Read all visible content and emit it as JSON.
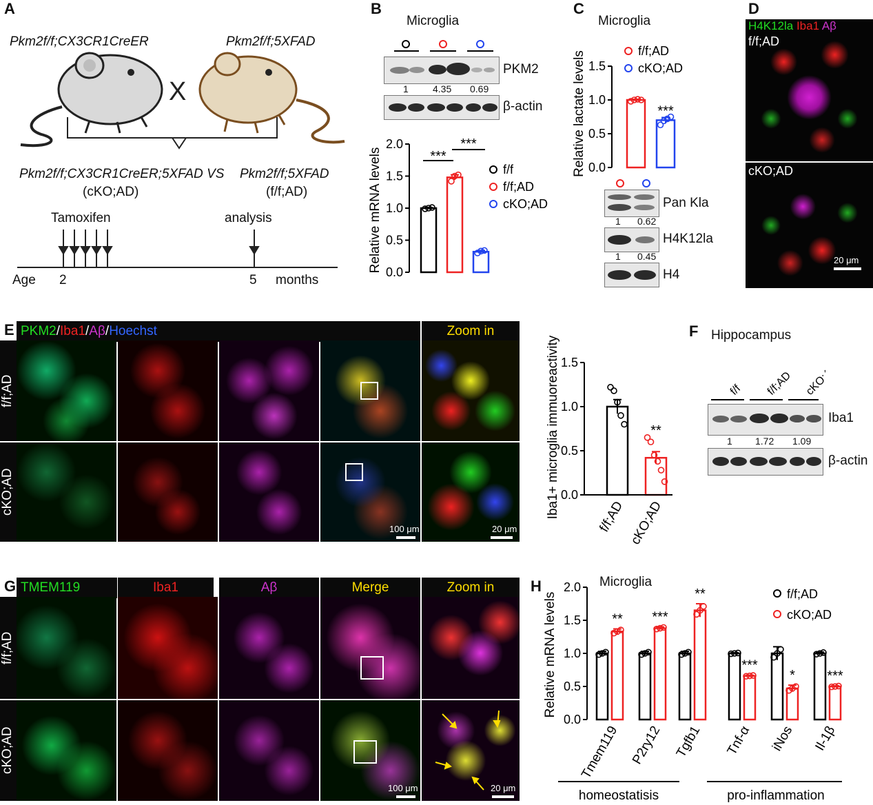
{
  "panel_a": {
    "letter": "A",
    "parent_left": "Pkm2f/f;CX3CR1CreER",
    "parent_right": "Pkm2f/f;5XFAD",
    "cross": "X",
    "offspring_left": "Pkm2f/f;CX3CR1CreER;5XFAD",
    "vs": "VS",
    "offspring_right": "Pkm2f/f;5XFAD",
    "group_left": "(cKO;AD)",
    "group_right": "(f/f;AD)",
    "tamoxifen": "Tamoxifen",
    "analysis": "analysis",
    "age": "Age",
    "age_start": "2",
    "age_end": "5",
    "months": "months"
  },
  "panel_b": {
    "letter": "B",
    "title": "Microglia",
    "blot_labels": [
      "PKM2",
      "β-actin"
    ],
    "quant": [
      "1",
      "4.35",
      "0.69"
    ]
  },
  "panel_c": {
    "letter": "C",
    "title": "Microglia",
    "blot_labels": [
      "Pan Kla",
      "H4K12la",
      "H4"
    ],
    "quant_kla": [
      "1",
      "0.62"
    ],
    "quant_h4": [
      "1",
      "0.45"
    ]
  },
  "panel_d": {
    "letter": "D",
    "stain": [
      "H4K12la",
      "Iba1",
      "Aβ"
    ],
    "rows": [
      "f/f;AD",
      "cKO;AD"
    ],
    "scale": "20 μm"
  },
  "panel_e": {
    "letter": "E",
    "stain": [
      "PKM2",
      "Iba1",
      "Aβ",
      "Hoechst"
    ],
    "zoom": "Zoom in",
    "rows": [
      "f/f;AD",
      "cKO;AD"
    ],
    "scale_main": "100 μm",
    "scale_zoom": "20 μm"
  },
  "panel_f": {
    "letter": "F",
    "title": "Hippocampus",
    "groups": [
      "f/f",
      "f/f;AD",
      "cKO;AD"
    ],
    "blot_labels": [
      "Iba1",
      "β-actin"
    ],
    "quant": [
      "1",
      "1.72",
      "1.09"
    ]
  },
  "panel_g": {
    "letter": "G",
    "headers": [
      "TMEM119",
      "Iba1",
      "Aβ",
      "Merge",
      "Zoom in"
    ],
    "rows": [
      "f/f;AD",
      "cKO;AD"
    ],
    "scale_main": "100 μm",
    "scale_zoom": "20 μm"
  },
  "panel_h": {
    "letter": "H",
    "title": "Microglia",
    "group_labels": [
      "homeostatisis",
      "pro-inflammation"
    ]
  },
  "colors": {
    "black_group": "#000000",
    "red_group": "#ee2222",
    "blue_group": "#2244ee",
    "green_stain": "#22dd22",
    "magenta_stain": "#cc33cc",
    "yellow_label": "#ffdd00"
  },
  "chart_data": [
    {
      "id": "B",
      "type": "bar",
      "ylabel": "Relative mRNA levels",
      "ylim": [
        0,
        2.0
      ],
      "yticks": [
        "0.0",
        "0.5",
        "1.0",
        "1.5",
        "2.0"
      ],
      "categories": [
        "f/f",
        "f/f;AD",
        "cKO;AD"
      ],
      "values": [
        1.0,
        1.48,
        0.32
      ],
      "errors": [
        0.01,
        0.04,
        0.02
      ],
      "points": [
        [
          0.99,
          1.0,
          1.01
        ],
        [
          1.42,
          1.5,
          1.52
        ],
        [
          0.3,
          0.33,
          0.34
        ]
      ],
      "colors": [
        "#000000",
        "#ee2222",
        "#2244ee"
      ],
      "legend": [
        "f/f",
        "f/f;AD",
        "cKO;AD"
      ],
      "significance": [
        {
          "pair": [
            0,
            1
          ],
          "label": "***"
        },
        {
          "pair": [
            1,
            2
          ],
          "label": "***"
        }
      ]
    },
    {
      "id": "C",
      "type": "bar",
      "ylabel": "Relative lactate levels",
      "ylim": [
        0,
        1.5
      ],
      "yticks": [
        "0.0",
        "0.5",
        "1.0",
        "1.5"
      ],
      "categories": [
        "f/f;AD",
        "cKO;AD"
      ],
      "values": [
        1.0,
        0.7
      ],
      "errors": [
        0.01,
        0.04
      ],
      "points": [
        [
          0.98,
          1.0,
          1.01,
          1.0
        ],
        [
          0.63,
          0.69,
          0.72,
          0.75
        ]
      ],
      "colors": [
        "#ee2222",
        "#2244ee"
      ],
      "legend": [
        "f/f;AD",
        "cKO;AD"
      ],
      "significance": [
        {
          "index": 1,
          "label": "***"
        }
      ]
    },
    {
      "id": "E",
      "type": "bar",
      "ylabel": "Iba1+ microglia  immuoreactivity",
      "ylim": [
        0,
        1.5
      ],
      "yticks": [
        "0.0",
        "0.5",
        "1.0",
        "1.5"
      ],
      "categories": [
        "f/f;AD",
        "cKO;AD"
      ],
      "values": [
        1.0,
        0.42
      ],
      "errors": [
        0.08,
        0.07
      ],
      "points": [
        [
          1.22,
          1.18,
          1.05,
          0.9,
          0.8
        ],
        [
          0.65,
          0.6,
          0.45,
          0.38,
          0.28,
          0.15
        ]
      ],
      "colors": [
        "#000000",
        "#ee2222"
      ],
      "significance": [
        {
          "index": 1,
          "label": "**"
        }
      ]
    },
    {
      "id": "H",
      "type": "bar",
      "ylabel": "Relative mRNA levels",
      "ylim": [
        0,
        2.0
      ],
      "yticks": [
        "0.0",
        "0.5",
        "1.0",
        "1.5",
        "2.0"
      ],
      "categories": [
        "Tmem119",
        "P2ry12",
        "Tgfb1",
        "Tnf-α",
        "iNos",
        "Il-1β"
      ],
      "series": [
        {
          "name": "f/f;AD",
          "color": "#000000",
          "values": [
            1.0,
            1.0,
            1.0,
            1.0,
            1.0,
            1.0
          ],
          "errors": [
            0.03,
            0.03,
            0.03,
            0.01,
            0.1,
            0.02
          ]
        },
        {
          "name": "cKO;AD",
          "color": "#ee2222",
          "values": [
            1.33,
            1.38,
            1.65,
            0.66,
            0.47,
            0.5
          ],
          "errors": [
            0.04,
            0.02,
            0.1,
            0.01,
            0.05,
            0.01
          ]
        }
      ],
      "significance": [
        "**",
        "***",
        "**",
        "***",
        "*",
        "***"
      ]
    }
  ]
}
